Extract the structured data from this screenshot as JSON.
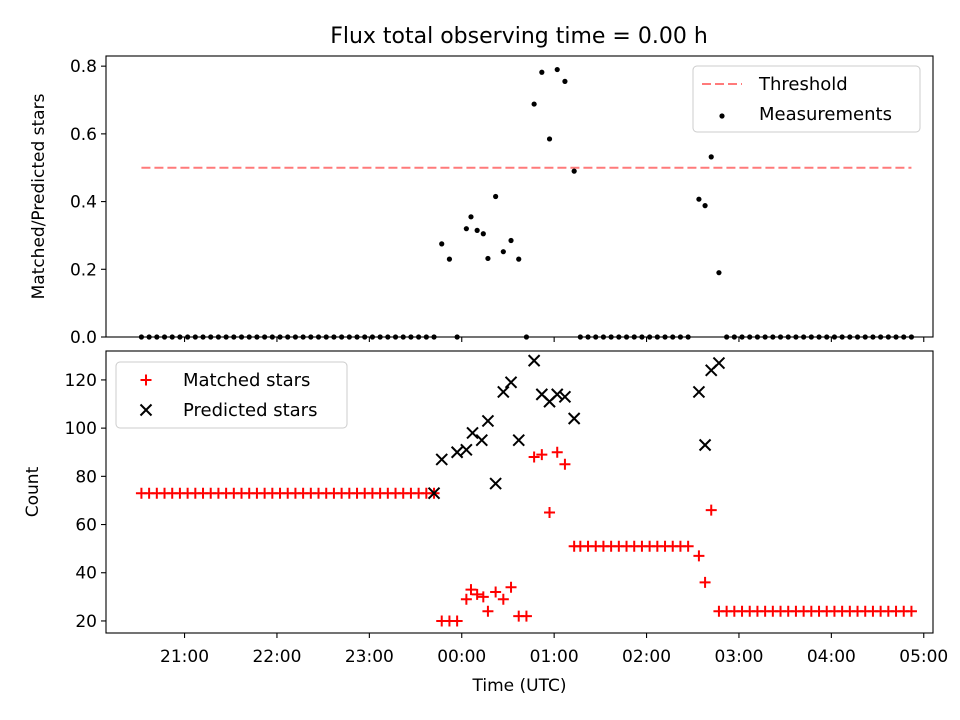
{
  "title": "Flux total observing time = 0.00 h",
  "chart_data": [
    {
      "type": "scatter",
      "panel": "top",
      "xlabel": "",
      "ylabel": "Matched/Predicted stars",
      "ylim": [
        0,
        0.83
      ],
      "yticks": [
        0.0,
        0.2,
        0.4,
        0.6,
        0.8
      ],
      "ytick_labels": [
        "0.0",
        "0.2",
        "0.4",
        "0.6",
        "0.8"
      ],
      "legend": {
        "placement": "top-right",
        "entries": [
          "Threshold",
          "Measurements"
        ]
      },
      "threshold": {
        "name": "Threshold",
        "value": 0.5,
        "x_start": "20:32",
        "x_end": "04:52",
        "color": "#ff7a7a",
        "style": "dashed"
      },
      "series": [
        {
          "name": "Measurements",
          "color": "#000000",
          "points": [
            [
              "20:32",
              0
            ],
            [
              "20:37",
              0
            ],
            [
              "20:42",
              0
            ],
            [
              "20:47",
              0
            ],
            [
              "20:52",
              0
            ],
            [
              "20:57",
              0
            ],
            [
              "21:02",
              0
            ],
            [
              "21:07",
              0
            ],
            [
              "21:12",
              0
            ],
            [
              "21:17",
              0
            ],
            [
              "21:22",
              0
            ],
            [
              "21:27",
              0
            ],
            [
              "21:32",
              0
            ],
            [
              "21:37",
              0
            ],
            [
              "21:42",
              0
            ],
            [
              "21:47",
              0
            ],
            [
              "21:52",
              0
            ],
            [
              "21:57",
              0
            ],
            [
              "22:02",
              0
            ],
            [
              "22:07",
              0
            ],
            [
              "22:12",
              0
            ],
            [
              "22:17",
              0
            ],
            [
              "22:22",
              0
            ],
            [
              "22:27",
              0
            ],
            [
              "22:32",
              0
            ],
            [
              "22:37",
              0
            ],
            [
              "22:42",
              0
            ],
            [
              "22:47",
              0
            ],
            [
              "22:52",
              0
            ],
            [
              "22:57",
              0
            ],
            [
              "23:02",
              0
            ],
            [
              "23:07",
              0
            ],
            [
              "23:12",
              0
            ],
            [
              "23:17",
              0
            ],
            [
              "23:22",
              0
            ],
            [
              "23:27",
              0
            ],
            [
              "23:32",
              0
            ],
            [
              "23:37",
              0
            ],
            [
              "23:42",
              0
            ],
            [
              "23:47",
              0.275
            ],
            [
              "23:52",
              0.23
            ],
            [
              "23:57",
              0
            ],
            [
              "00:03",
              0.32
            ],
            [
              "00:06",
              0.355
            ],
            [
              "00:10",
              0.315
            ],
            [
              "00:14",
              0.305
            ],
            [
              "00:17",
              0.232
            ],
            [
              "00:22",
              0.415
            ],
            [
              "00:27",
              0.252
            ],
            [
              "00:32",
              0.285
            ],
            [
              "00:37",
              0.23
            ],
            [
              "00:42",
              0
            ],
            [
              "00:47",
              0.688
            ],
            [
              "00:52",
              0.782
            ],
            [
              "00:57",
              0.585
            ],
            [
              "01:02",
              0.79
            ],
            [
              "01:07",
              0.755
            ],
            [
              "01:13",
              0.49
            ],
            [
              "01:17",
              0
            ],
            [
              "01:22",
              0
            ],
            [
              "01:27",
              0
            ],
            [
              "01:32",
              0
            ],
            [
              "01:37",
              0
            ],
            [
              "01:42",
              0
            ],
            [
              "01:47",
              0
            ],
            [
              "01:52",
              0
            ],
            [
              "01:57",
              0
            ],
            [
              "02:02",
              0
            ],
            [
              "02:07",
              0
            ],
            [
              "02:12",
              0
            ],
            [
              "02:17",
              0
            ],
            [
              "02:22",
              0
            ],
            [
              "02:27",
              0
            ],
            [
              "02:34",
              0.407
            ],
            [
              "02:38",
              0.388
            ],
            [
              "02:42",
              0.532
            ],
            [
              "02:47",
              0.19
            ],
            [
              "02:52",
              0
            ],
            [
              "02:57",
              0
            ],
            [
              "03:02",
              0
            ],
            [
              "03:07",
              0
            ],
            [
              "03:12",
              0
            ],
            [
              "03:17",
              0
            ],
            [
              "03:22",
              0
            ],
            [
              "03:27",
              0
            ],
            [
              "03:32",
              0
            ],
            [
              "03:37",
              0
            ],
            [
              "03:42",
              0
            ],
            [
              "03:47",
              0
            ],
            [
              "03:52",
              0
            ],
            [
              "03:57",
              0
            ],
            [
              "04:02",
              0
            ],
            [
              "04:07",
              0
            ],
            [
              "04:12",
              0
            ],
            [
              "04:17",
              0
            ],
            [
              "04:22",
              0
            ],
            [
              "04:27",
              0
            ],
            [
              "04:32",
              0
            ],
            [
              "04:37",
              0
            ],
            [
              "04:42",
              0
            ],
            [
              "04:47",
              0
            ],
            [
              "04:52",
              0
            ]
          ]
        }
      ]
    },
    {
      "type": "scatter",
      "panel": "bottom",
      "xlabel": "Time (UTC)",
      "ylabel": "Count",
      "xlim": [
        "20:09",
        "05:06"
      ],
      "xticks": [
        "21:00",
        "22:00",
        "23:00",
        "00:00",
        "01:00",
        "02:00",
        "03:00",
        "04:00",
        "05:00"
      ],
      "ylim": [
        15,
        132
      ],
      "yticks": [
        20,
        40,
        60,
        80,
        100,
        120
      ],
      "ytick_labels": [
        "20",
        "40",
        "60",
        "80",
        "100",
        "120"
      ],
      "legend": {
        "placement": "top-left",
        "entries": [
          "Matched stars",
          "Predicted stars"
        ]
      },
      "series": [
        {
          "name": "Matched stars",
          "marker": "plus",
          "color": "#ff0000",
          "points": [
            [
              "20:32",
              73
            ],
            [
              "20:37",
              73
            ],
            [
              "20:42",
              73
            ],
            [
              "20:47",
              73
            ],
            [
              "20:52",
              73
            ],
            [
              "20:57",
              73
            ],
            [
              "21:02",
              73
            ],
            [
              "21:07",
              73
            ],
            [
              "21:12",
              73
            ],
            [
              "21:17",
              73
            ],
            [
              "21:22",
              73
            ],
            [
              "21:27",
              73
            ],
            [
              "21:32",
              73
            ],
            [
              "21:37",
              73
            ],
            [
              "21:42",
              73
            ],
            [
              "21:47",
              73
            ],
            [
              "21:52",
              73
            ],
            [
              "21:57",
              73
            ],
            [
              "22:02",
              73
            ],
            [
              "22:07",
              73
            ],
            [
              "22:12",
              73
            ],
            [
              "22:17",
              73
            ],
            [
              "22:22",
              73
            ],
            [
              "22:27",
              73
            ],
            [
              "22:32",
              73
            ],
            [
              "22:37",
              73
            ],
            [
              "22:42",
              73
            ],
            [
              "22:47",
              73
            ],
            [
              "22:52",
              73
            ],
            [
              "22:57",
              73
            ],
            [
              "23:02",
              73
            ],
            [
              "23:07",
              73
            ],
            [
              "23:12",
              73
            ],
            [
              "23:17",
              73
            ],
            [
              "23:22",
              73
            ],
            [
              "23:27",
              73
            ],
            [
              "23:32",
              73
            ],
            [
              "23:37",
              73
            ],
            [
              "23:42",
              73
            ],
            [
              "23:47",
              20
            ],
            [
              "23:52",
              20
            ],
            [
              "23:57",
              20
            ],
            [
              "00:03",
              29
            ],
            [
              "00:06",
              33
            ],
            [
              "00:10",
              31
            ],
            [
              "00:14",
              30
            ],
            [
              "00:17",
              24
            ],
            [
              "00:22",
              32
            ],
            [
              "00:27",
              29
            ],
            [
              "00:32",
              34
            ],
            [
              "00:37",
              22
            ],
            [
              "00:42",
              22
            ],
            [
              "00:47",
              88
            ],
            [
              "00:52",
              89
            ],
            [
              "00:57",
              65
            ],
            [
              "01:02",
              90
            ],
            [
              "01:07",
              85
            ],
            [
              "01:13",
              51
            ],
            [
              "01:17",
              51
            ],
            [
              "01:22",
              51
            ],
            [
              "01:27",
              51
            ],
            [
              "01:32",
              51
            ],
            [
              "01:37",
              51
            ],
            [
              "01:42",
              51
            ],
            [
              "01:47",
              51
            ],
            [
              "01:52",
              51
            ],
            [
              "01:57",
              51
            ],
            [
              "02:02",
              51
            ],
            [
              "02:07",
              51
            ],
            [
              "02:12",
              51
            ],
            [
              "02:17",
              51
            ],
            [
              "02:22",
              51
            ],
            [
              "02:27",
              51
            ],
            [
              "02:34",
              47
            ],
            [
              "02:38",
              36
            ],
            [
              "02:42",
              66
            ],
            [
              "02:47",
              24
            ],
            [
              "02:52",
              24
            ],
            [
              "02:57",
              24
            ],
            [
              "03:02",
              24
            ],
            [
              "03:07",
              24
            ],
            [
              "03:12",
              24
            ],
            [
              "03:17",
              24
            ],
            [
              "03:22",
              24
            ],
            [
              "03:27",
              24
            ],
            [
              "03:32",
              24
            ],
            [
              "03:37",
              24
            ],
            [
              "03:42",
              24
            ],
            [
              "03:47",
              24
            ],
            [
              "03:52",
              24
            ],
            [
              "03:57",
              24
            ],
            [
              "04:02",
              24
            ],
            [
              "04:07",
              24
            ],
            [
              "04:12",
              24
            ],
            [
              "04:17",
              24
            ],
            [
              "04:22",
              24
            ],
            [
              "04:27",
              24
            ],
            [
              "04:32",
              24
            ],
            [
              "04:37",
              24
            ],
            [
              "04:42",
              24
            ],
            [
              "04:47",
              24
            ],
            [
              "04:52",
              24
            ]
          ]
        },
        {
          "name": "Predicted stars",
          "marker": "x",
          "color": "#000000",
          "points": [
            [
              "23:42",
              73
            ],
            [
              "23:47",
              87
            ],
            [
              "23:57",
              90
            ],
            [
              "00:03",
              91
            ],
            [
              "00:07",
              98
            ],
            [
              "00:13",
              95
            ],
            [
              "00:17",
              103
            ],
            [
              "00:22",
              77
            ],
            [
              "00:27",
              115
            ],
            [
              "00:32",
              119
            ],
            [
              "00:37",
              95
            ],
            [
              "00:47",
              128
            ],
            [
              "00:52",
              114
            ],
            [
              "00:57",
              111
            ],
            [
              "01:02",
              114
            ],
            [
              "01:07",
              113
            ],
            [
              "01:13",
              104
            ],
            [
              "02:34",
              115
            ],
            [
              "02:38",
              93
            ],
            [
              "02:42",
              124
            ],
            [
              "02:47",
              127
            ]
          ]
        }
      ]
    }
  ]
}
